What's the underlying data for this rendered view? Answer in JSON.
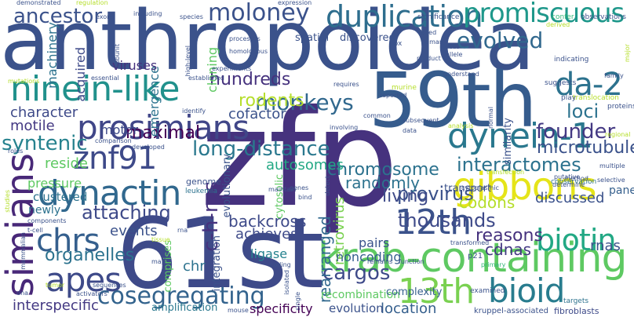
{
  "colors": {
    "background": "#ffffff",
    "palette": [
      "#440154",
      "#482878",
      "#3e4a89",
      "#31688e",
      "#26828e",
      "#1f9e89",
      "#35b779",
      "#6ece58",
      "#b5de2b",
      "#fde725"
    ]
  },
  "words": [
    {
      "id": "anthropoidea",
      "text": "anthropoidea",
      "color": "#3b528b"
    },
    {
      "id": "zfp",
      "text": "zfp",
      "color": "#46327e"
    },
    {
      "id": "61st",
      "text": "61st",
      "color": "#3e4a89"
    },
    {
      "id": "59th",
      "text": "59th",
      "color": "#365c8d"
    },
    {
      "id": "krab-containing",
      "text": "krab-containing",
      "color": "#5ec962"
    },
    {
      "id": "ninein-like",
      "text": "ninein-like",
      "color": "#21918c"
    },
    {
      "id": "prosimians",
      "text": "prosimians",
      "color": "#404688"
    },
    {
      "id": "dynactin",
      "text": "dynactin",
      "color": "#31688e"
    },
    {
      "id": "simians",
      "text": "simians",
      "color": "#482878"
    },
    {
      "id": "apes",
      "text": "apes",
      "color": "#3e4a89"
    },
    {
      "id": "cosegregating",
      "text": "cosegregating",
      "color": "#33638d"
    },
    {
      "id": "13th",
      "text": "13th",
      "color": "#7ad151"
    },
    {
      "id": "bioid",
      "text": "bioid",
      "color": "#287c8e"
    },
    {
      "id": "12th",
      "text": "12th",
      "color": "#3b528b"
    },
    {
      "id": "gibbons",
      "text": "gibbons",
      "color": "#e5e419"
    },
    {
      "id": "dynein-1",
      "text": "dynein-1",
      "color": "#2a788e"
    },
    {
      "id": "biotin",
      "text": "biotin",
      "color": "#22a884"
    },
    {
      "id": "da-2",
      "text": "da-2",
      "color": "#2c728e"
    },
    {
      "id": "znf91",
      "text": "znf91",
      "color": "#3e4a89"
    },
    {
      "id": "chrs",
      "text": "chrs",
      "color": "#355f8d"
    },
    {
      "id": "duplication",
      "text": "duplication",
      "color": "#2e6e8e"
    },
    {
      "id": "promiscuous",
      "text": "promiscuous",
      "color": "#1f988b"
    },
    {
      "id": "moloney",
      "text": "moloney",
      "color": "#3b528b"
    },
    {
      "id": "evolved",
      "text": "evolved",
      "color": "#31688e"
    },
    {
      "id": "interactomes",
      "text": "interactomes",
      "color": "#2c728e"
    },
    {
      "id": "monkeys",
      "text": "monkeys",
      "color": "#31688e"
    },
    {
      "id": "long-distance",
      "text": "long-distance",
      "color": "#2a788e"
    },
    {
      "id": "attaching",
      "text": "attaching",
      "color": "#3e4a89"
    },
    {
      "id": "cargos",
      "text": "cargos",
      "color": "#3e4a89"
    },
    {
      "id": "thousands",
      "text": "thousands",
      "color": "#3e4a89"
    },
    {
      "id": "provirus",
      "text": "provirus",
      "color": "#3b528b"
    },
    {
      "id": "chromosome",
      "text": "chromosome",
      "color": "#2c728e"
    },
    {
      "id": "c-h-ras",
      "text": "c-h-ras",
      "color": "#46327e"
    },
    {
      "id": "founder",
      "text": "founder",
      "color": "#443983"
    },
    {
      "id": "microtubule",
      "text": "microtubule",
      "color": "#3b528b"
    },
    {
      "id": "syntenic",
      "text": "syntenic",
      "color": "#26828e"
    },
    {
      "id": "maximal",
      "text": "maximal",
      "color": "#440154"
    },
    {
      "id": "hundreds",
      "text": "hundreds",
      "color": "#46327e"
    },
    {
      "id": "rodents",
      "text": "rodents",
      "color": "#b5de2b"
    },
    {
      "id": "ancestor",
      "text": "ancestor",
      "color": "#3b528b"
    },
    {
      "id": "reasons",
      "text": "reasons",
      "color": "#46327e"
    },
    {
      "id": "organelles",
      "text": "organelles",
      "color": "#2c728e"
    },
    {
      "id": "interspecific",
      "text": "interspecific",
      "color": "#443983"
    },
    {
      "id": "location",
      "text": "location",
      "color": "#355f8d"
    },
    {
      "id": "evolution",
      "text": "evolution",
      "color": "#3b528b"
    },
    {
      "id": "specificity",
      "text": "specificity",
      "color": "#440154"
    },
    {
      "id": "amplification",
      "text": "amplification",
      "color": "#2a788e"
    },
    {
      "id": "backcross",
      "text": "backcross",
      "color": "#3e4a89"
    },
    {
      "id": "achieves",
      "text": "achieves",
      "color": "#3e4a89"
    },
    {
      "id": "events",
      "text": "events",
      "color": "#3b528b"
    },
    {
      "id": "character",
      "text": "character",
      "color": "#3e4a89"
    },
    {
      "id": "motile",
      "text": "motile",
      "color": "#443983"
    },
    {
      "id": "reside",
      "text": "reside",
      "color": "#5ec962"
    },
    {
      "id": "pressure",
      "text": "pressure",
      "color": "#5ec962"
    },
    {
      "id": "clustered",
      "text": "clustered",
      "color": "#2c728e"
    },
    {
      "id": "newly",
      "text": "newly",
      "color": "#2c728e"
    },
    {
      "id": "autosomes",
      "text": "autosomes",
      "color": "#22a884"
    },
    {
      "id": "rearranged",
      "text": "rearranged",
      "color": "#31688e"
    },
    {
      "id": "retrovirus",
      "text": "retrovirus",
      "color": "#7ad151"
    },
    {
      "id": "cdnas",
      "text": "cdnas",
      "color": "#443983"
    },
    {
      "id": "codons",
      "text": "codons",
      "color": "#b5de2b"
    },
    {
      "id": "loci",
      "text": "loci",
      "color": "#2c728e"
    },
    {
      "id": "living",
      "text": "living",
      "color": "#3e4a89"
    },
    {
      "id": "randomly",
      "text": "randomly",
      "color": "#2c728e"
    },
    {
      "id": "pairs",
      "text": "pairs",
      "color": "#3b528b"
    },
    {
      "id": "noncoding",
      "text": "noncoding",
      "color": "#355f8d"
    },
    {
      "id": "discussed",
      "text": "discussed",
      "color": "#3b528b"
    },
    {
      "id": "panel",
      "text": "panel",
      "color": "#355f8d"
    },
    {
      "id": "rnas",
      "text": "rnas",
      "color": "#3b528b"
    },
    {
      "id": "chr",
      "text": "chr",
      "color": "#2c728e"
    },
    {
      "id": "ligase",
      "text": "ligase",
      "color": "#26828e"
    },
    {
      "id": "cofactor",
      "text": "cofactor",
      "color": "#3b528b"
    },
    {
      "id": "motor",
      "text": "motor",
      "color": "#3e4a89"
    },
    {
      "id": "emergence",
      "text": "emergence",
      "color": "#2c728e"
    },
    {
      "id": "viruses",
      "text": "viruses",
      "color": "#46327e"
    },
    {
      "id": "machinery",
      "text": "machinery",
      "color": "#2c728e"
    },
    {
      "id": "acquired",
      "text": "acquired",
      "color": "#3e4a89"
    },
    {
      "id": "cloning",
      "text": "cloning",
      "color": "#5ec962"
    },
    {
      "id": "recombination",
      "text": "recombination",
      "color": "#5ec962"
    },
    {
      "id": "complexity",
      "text": "complexity",
      "color": "#355f8d"
    },
    {
      "id": "transport",
      "text": "transport",
      "color": "#3b528b"
    },
    {
      "id": "similarity",
      "text": "similarity",
      "color": "#3b528b"
    },
    {
      "id": "cytosolic",
      "text": "cytosolic",
      "color": "#5ec962"
    },
    {
      "id": "comprises",
      "text": "comprises",
      "color": "#5ec962"
    },
    {
      "id": "integration",
      "text": "integration",
      "color": "#3b528b"
    },
    {
      "id": "evolutionary",
      "text": "evolutionary",
      "color": "#3b528b"
    },
    {
      "id": "discovered",
      "text": "discovered",
      "color": "#3b528b"
    },
    {
      "id": "spatial",
      "text": "spatial",
      "color": "#3b528b"
    },
    {
      "id": "genome",
      "text": "genome",
      "color": "#3b528b"
    },
    {
      "id": "leukemia",
      "text": "leukemia",
      "color": "#2c728e"
    },
    {
      "id": "conservation",
      "text": "conservation",
      "color": "#2c728e"
    },
    {
      "id": "kruppel-associated",
      "text": "kruppel-associated",
      "color": "#3b528b"
    },
    {
      "id": "fibroblasts",
      "text": "fibroblasts",
      "color": "#3e4a89"
    },
    {
      "id": "transformed",
      "text": "transformed",
      "color": "#3b528b"
    },
    {
      "id": "transfection",
      "text": "transfection",
      "color": "#b5de2b"
    },
    {
      "id": "examined",
      "text": "examined",
      "color": "#3b528b"
    },
    {
      "id": "targets",
      "text": "targets",
      "color": "#2c728e"
    },
    {
      "id": "p21",
      "text": "p21",
      "color": "#3b528b"
    },
    {
      "id": "primary",
      "text": "primary",
      "color": "#35b779"
    },
    {
      "id": "remains",
      "text": "remains",
      "color": "#3b528b"
    },
    {
      "id": "function",
      "text": "function",
      "color": "#3b528b"
    },
    {
      "id": "putative",
      "text": "putative",
      "color": "#3b528b"
    },
    {
      "id": "determine",
      "text": "determine",
      "color": "#3b528b"
    },
    {
      "id": "method",
      "text": "method",
      "color": "#3b528b"
    },
    {
      "id": "selective",
      "text": "selective",
      "color": "#3b528b"
    },
    {
      "id": "multiple",
      "text": "multiple",
      "color": "#3b528b"
    },
    {
      "id": "regional",
      "text": "regional",
      "color": "#b5de2b"
    },
    {
      "id": "proteins",
      "text": "proteins",
      "color": "#3b528b"
    },
    {
      "id": "translocation",
      "text": "translocation",
      "color": "#b5de2b"
    },
    {
      "id": "family",
      "text": "family",
      "color": "#3b528b"
    },
    {
      "id": "play",
      "text": "play",
      "color": "#3b528b"
    },
    {
      "id": "suggests",
      "text": "suggests",
      "color": "#3b528b"
    },
    {
      "id": "indicating",
      "text": "indicating",
      "color": "#3b528b"
    },
    {
      "id": "observations",
      "text": "observations",
      "color": "#3b528b"
    },
    {
      "id": "confer",
      "text": "confer",
      "color": "#35b779"
    },
    {
      "id": "derived",
      "text": "derived",
      "color": "#b5de2b"
    },
    {
      "id": "significance",
      "text": "significance",
      "color": "#3b528b"
    },
    {
      "id": "failed",
      "text": "failed",
      "color": "#3b528b"
    },
    {
      "id": "human",
      "text": "human",
      "color": "#3b528b"
    },
    {
      "id": "box",
      "text": "box",
      "color": "#3b528b"
    },
    {
      "id": "locus",
      "text": "locus",
      "color": "#3b528b"
    },
    {
      "id": "allele",
      "text": "allele",
      "color": "#3b528b"
    },
    {
      "id": "product",
      "text": "product",
      "color": "#3b528b"
    },
    {
      "id": "understand",
      "text": "understand",
      "color": "#3b528b"
    },
    {
      "id": "murine",
      "text": "murine",
      "color": "#b5de2b"
    },
    {
      "id": "reported",
      "text": "reported",
      "color": "#3b528b"
    },
    {
      "id": "requires",
      "text": "requires",
      "color": "#3b528b"
    },
    {
      "id": "common",
      "text": "common",
      "color": "#3b528b"
    },
    {
      "id": "involving",
      "text": "involving",
      "color": "#3b528b"
    },
    {
      "id": "subsequent",
      "text": "subsequent",
      "color": "#3b528b"
    },
    {
      "id": "analysis",
      "text": "analysis",
      "color": "#b5de2b"
    },
    {
      "id": "data",
      "text": "data",
      "color": "#3b528b"
    },
    {
      "id": "normal",
      "text": "normal",
      "color": "#3b528b"
    },
    {
      "id": "cytoplasmic",
      "text": "cytoplasmic",
      "color": "#3b528b"
    },
    {
      "id": "detect",
      "text": "detect",
      "color": "#3b528b"
    },
    {
      "id": "isolated",
      "text": "isolated",
      "color": "#3b528b"
    },
    {
      "id": "single",
      "text": "single",
      "color": "#3b528b"
    },
    {
      "id": "bind",
      "text": "bind",
      "color": "#3b528b"
    },
    {
      "id": "genes",
      "text": "genes",
      "color": "#3b528b"
    },
    {
      "id": "maintain",
      "text": "maintain",
      "color": "#3b528b"
    },
    {
      "id": "coding",
      "text": "coding",
      "color": "#3b528b"
    },
    {
      "id": "mouse",
      "text": "mouse",
      "color": "#3b528b"
    },
    {
      "id": "rna",
      "text": "rna",
      "color": "#3b528b"
    },
    {
      "id": "tissue",
      "text": "tissue",
      "color": "#b5de2b"
    },
    {
      "id": "map",
      "text": "map",
      "color": "#3b528b"
    },
    {
      "id": "developed",
      "text": "developed",
      "color": "#3b528b"
    },
    {
      "id": "comparison",
      "text": "comparison",
      "color": "#3b528b"
    },
    {
      "id": "identify",
      "text": "identify",
      "color": "#3b528b"
    },
    {
      "id": "essential",
      "text": "essential",
      "color": "#3b528b"
    },
    {
      "id": "established",
      "text": "established",
      "color": "#3b528b"
    },
    {
      "id": "experiments",
      "text": "experiments",
      "color": "#3b528b"
    },
    {
      "id": "homologous",
      "text": "homologous",
      "color": "#3b528b"
    },
    {
      "id": "processes",
      "text": "processes",
      "color": "#3b528b"
    },
    {
      "id": "high-level",
      "text": "high-level",
      "color": "#3b528b"
    },
    {
      "id": "subunit",
      "text": "subunit",
      "color": "#3b528b"
    },
    {
      "id": "species",
      "text": "species",
      "color": "#3b528b"
    },
    {
      "id": "exons",
      "text": "exons",
      "color": "#3b528b"
    },
    {
      "id": "including",
      "text": "including",
      "color": "#3b528b"
    },
    {
      "id": "regulation",
      "text": "regulation",
      "color": "#b5de2b"
    },
    {
      "id": "expression",
      "text": "expression",
      "color": "#3b528b"
    },
    {
      "id": "demonstrated",
      "text": "demonstrated",
      "color": "#3b528b"
    },
    {
      "id": "mutations",
      "text": "mutations",
      "color": "#b5de2b"
    },
    {
      "id": "roles",
      "text": "roles",
      "color": "#3b528b"
    },
    {
      "id": "components",
      "text": "components",
      "color": "#3b528b"
    },
    {
      "id": "t-cell",
      "text": "t-cell",
      "color": "#3b528b"
    },
    {
      "id": "mammalian",
      "text": "mammalian",
      "color": "#3b528b"
    },
    {
      "id": "dna",
      "text": "dna",
      "color": "#3b528b"
    },
    {
      "id": "activators",
      "text": "activators",
      "color": "#3b528b"
    },
    {
      "id": "tumor",
      "text": "tumor",
      "color": "#b5de2b"
    },
    {
      "id": "sequences",
      "text": "sequences",
      "color": "#3b528b"
    },
    {
      "id": "studies",
      "text": "studies",
      "color": "#b5de2b"
    },
    {
      "id": "major",
      "text": "major",
      "color": "#b5de2b"
    }
  ]
}
